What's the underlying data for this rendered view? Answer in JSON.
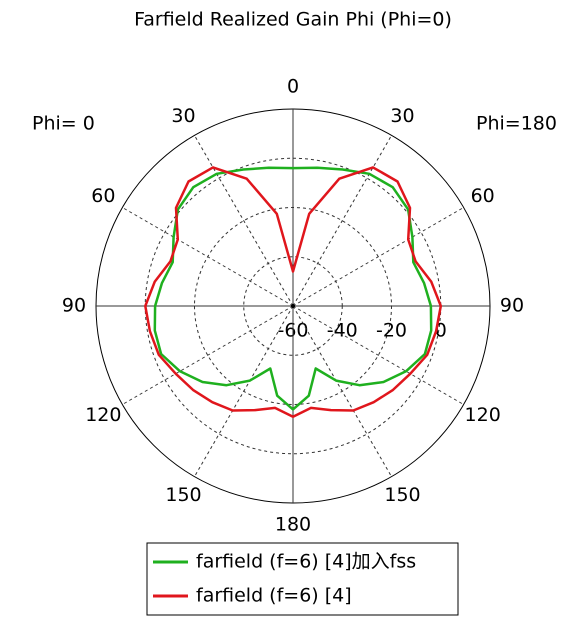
{
  "chart_data": {
    "type": "polar",
    "title": "Farfield Realized Gain Phi (Phi=0)",
    "left_label": "Phi=  0",
    "right_label": "Phi=180",
    "rlim": [
      -60,
      20
    ],
    "rticks": [
      -60,
      -40,
      -20,
      0
    ],
    "thetaticks": [
      0,
      30,
      60,
      90,
      120,
      150,
      180,
      {
        "value": 210,
        "label": "150"
      },
      {
        "value": 240,
        "label": "120"
      },
      {
        "value": 270,
        "label": "90"
      },
      {
        "value": 300,
        "label": "60"
      },
      {
        "value": 330,
        "label": "30"
      }
    ],
    "grid": true,
    "theta": [
      0,
      10,
      20,
      30,
      40,
      50,
      60,
      70,
      80,
      90,
      100,
      110,
      120,
      130,
      140,
      150,
      160,
      170,
      180,
      190,
      200,
      210,
      220,
      230,
      240,
      250,
      260,
      270,
      280,
      290,
      300,
      310,
      320,
      330,
      340,
      350
    ],
    "series": [
      {
        "name": "farfield (f=6) [4]加入fss",
        "color": "#1fb01f",
        "values": [
          -4,
          -3,
          -1,
          2,
          3,
          1,
          -4,
          -8,
          -6,
          -4,
          -3,
          -3,
          -7,
          -12,
          -18,
          -25,
          -33,
          -23,
          -18,
          -23,
          -33,
          -25,
          -18,
          -12,
          -7,
          -3,
          -3,
          -4,
          -6,
          -8,
          -4,
          1,
          3,
          2,
          -1,
          -3
        ]
      },
      {
        "name": "farfield (f=6) [4]",
        "color": "#e0161c",
        "values": [
          -46,
          -22,
          -5,
          5,
          6,
          2,
          -6,
          -7,
          -3,
          0,
          -1,
          -2,
          -5,
          -7,
          -9,
          -11,
          -15,
          -18,
          -15,
          -18,
          -15,
          -11,
          -9,
          -7,
          -5,
          -2,
          -1,
          0,
          -3,
          -7,
          -6,
          2,
          6,
          5,
          -5,
          -22
        ]
      }
    ]
  }
}
